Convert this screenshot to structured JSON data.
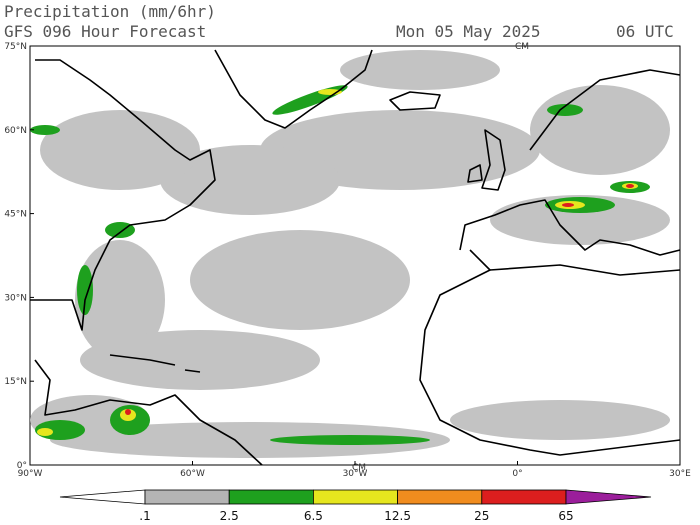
{
  "header": {
    "title": "Precipitation (mm/6hr)",
    "model": "GFS 096 Hour Forecast",
    "date": "Mon 05 May 2025",
    "time": "06 UTC"
  },
  "map": {
    "lat_labels": [
      "75°N",
      "60°N",
      "45°N",
      "30°N",
      "15°N",
      "0°"
    ],
    "lon_labels": [
      "90°W",
      "60°W",
      "30°W",
      "0°",
      "30°E"
    ],
    "markers": [
      "CM",
      "CM"
    ]
  },
  "colorbar": {
    "colors": [
      "#ffffff",
      "#b4b4b4",
      "#1ea01e",
      "#e6e61e",
      "#f08c1e",
      "#dc1e1e",
      "#9b1e9b"
    ],
    "labels": [
      ".1",
      "2.5",
      "6.5",
      "12.5",
      "25",
      "65"
    ]
  }
}
